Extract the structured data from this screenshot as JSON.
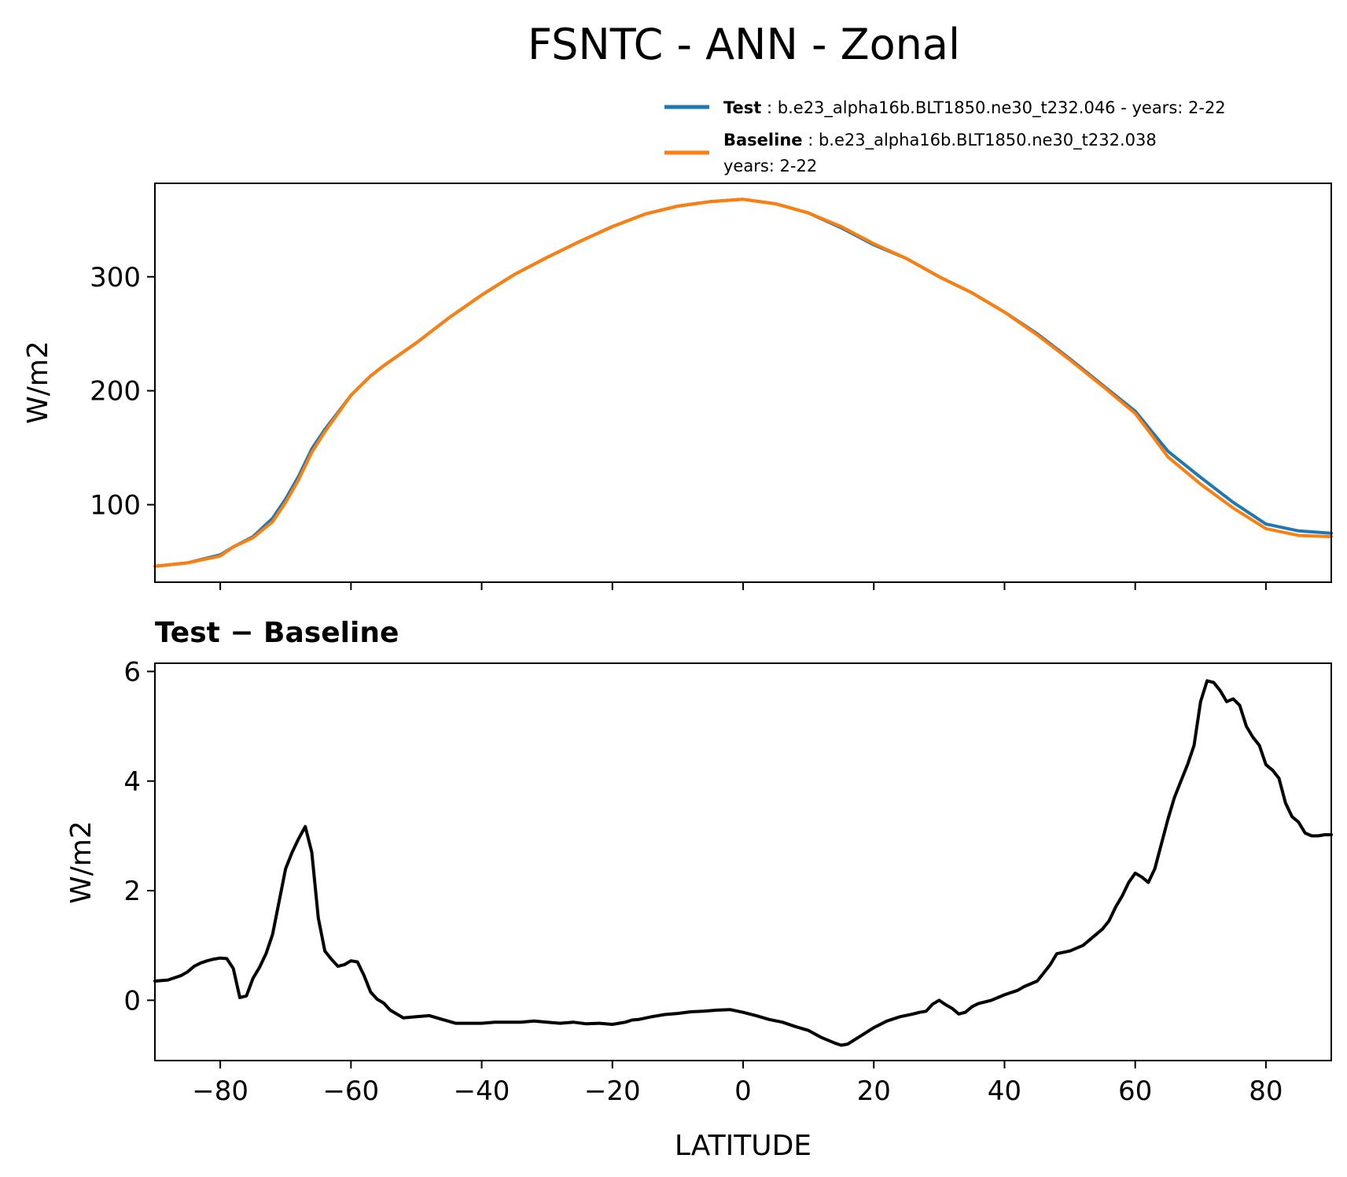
{
  "figure_title": "FSNTC - ANN - Zonal",
  "legend": {
    "test": {
      "label": "Test",
      "desc": "b.e23_alpha16b.BLT1850.ne30_t232.046 - years: 2-22",
      "color": "#1f77b4"
    },
    "baseline": {
      "label": "Baseline",
      "desc": "b.e23_alpha16b.BLT1850.ne30_t232.038",
      "desc2": "years: 2-22",
      "color": "#ff7f0e"
    }
  },
  "diff_title": "Test − Baseline",
  "chart_data": [
    {
      "type": "line",
      "title": "FSNTC - ANN - Zonal",
      "xlabel": "",
      "ylabel": "W/m2",
      "xlim": [
        -90,
        90
      ],
      "ylim": [
        32,
        382
      ],
      "xticks": [
        -80,
        -60,
        -40,
        -20,
        0,
        20,
        40,
        60,
        80
      ],
      "yticks": [
        100,
        200,
        300
      ],
      "ytick_labels": [
        "100",
        "200",
        "300"
      ],
      "x": [
        -90,
        -85,
        -80,
        -78,
        -75,
        -72,
        -70,
        -68,
        -66,
        -64,
        -62,
        -60,
        -57,
        -55,
        -50,
        -45,
        -40,
        -35,
        -30,
        -25,
        -20,
        -15,
        -10,
        -5,
        0,
        5,
        10,
        15,
        20,
        25,
        30,
        35,
        40,
        45,
        50,
        55,
        60,
        62,
        65,
        70,
        75,
        80,
        85,
        90
      ],
      "series": [
        {
          "name": "Test",
          "color": "#1f77b4",
          "values": [
            46,
            49,
            56,
            63,
            72,
            88,
            105,
            125,
            149,
            166,
            181,
            196,
            213,
            222,
            242,
            264,
            284,
            302,
            317,
            331,
            344,
            355,
            362,
            366,
            368,
            364,
            356,
            343,
            328,
            316,
            300,
            286,
            269,
            250,
            228,
            205,
            182,
            168,
            147,
            124,
            102,
            83,
            77,
            75
          ]
        },
        {
          "name": "Baseline",
          "color": "#ff7f0e",
          "values": [
            46,
            49,
            55,
            63,
            71,
            85,
            102,
            122,
            146,
            164,
            180,
            196,
            213,
            222,
            242,
            264,
            284,
            302,
            317,
            331,
            344,
            355,
            362,
            366,
            368,
            364,
            356,
            344,
            329,
            316,
            300,
            286,
            269,
            249,
            227,
            204,
            180,
            165,
            142,
            118,
            97,
            79,
            73,
            72
          ]
        }
      ]
    },
    {
      "type": "line",
      "title": "Test − Baseline",
      "xlabel": "LATITUDE",
      "ylabel": "W/m2",
      "xlim": [
        -90,
        90
      ],
      "ylim": [
        -1.1,
        6.15
      ],
      "xticks": [
        -80,
        -60,
        -40,
        -20,
        0,
        20,
        40,
        60,
        80
      ],
      "xtick_labels": [
        "−80",
        "−60",
        "−40",
        "−20",
        "0",
        "20",
        "40",
        "60",
        "80"
      ],
      "yticks": [
        0,
        2,
        4,
        6
      ],
      "ytick_labels": [
        "0",
        "2",
        "4",
        "6"
      ],
      "x": [
        -90,
        -88,
        -86,
        -85,
        -84,
        -83,
        -82,
        -81,
        -80,
        -79,
        -78,
        -77,
        -76,
        -75,
        -74,
        -73,
        -72,
        -71,
        -70,
        -69,
        -68,
        -67,
        -66,
        -65,
        -64,
        -63,
        -62,
        -61,
        -60,
        -59,
        -58,
        -57,
        -56,
        -55,
        -54,
        -52,
        -50,
        -48,
        -46,
        -44,
        -42,
        -40,
        -38,
        -36,
        -34,
        -32,
        -30,
        -28,
        -26,
        -24,
        -22,
        -20,
        -19,
        -18,
        -17,
        -16,
        -14,
        -12,
        -10,
        -8,
        -6,
        -4,
        -2,
        0,
        2,
        4,
        6,
        8,
        10,
        12,
        14,
        15,
        16,
        18,
        20,
        22,
        24,
        26,
        27,
        28,
        29,
        30,
        31,
        32,
        33,
        34,
        35,
        36,
        38,
        39,
        40,
        42,
        43,
        44,
        45,
        46,
        47,
        48,
        50,
        52,
        53,
        54,
        55,
        56,
        57,
        58,
        59,
        60,
        61,
        62,
        63,
        64,
        65,
        66,
        67,
        68,
        69,
        70,
        71,
        72,
        73,
        74,
        75,
        76,
        77,
        78,
        79,
        80,
        81,
        82,
        83,
        84,
        85,
        86,
        87,
        88,
        89,
        90
      ],
      "series": [
        {
          "name": "Test − Baseline",
          "color": "#000000",
          "values": [
            0.35,
            0.37,
            0.45,
            0.52,
            0.62,
            0.68,
            0.72,
            0.75,
            0.77,
            0.76,
            0.58,
            0.05,
            0.08,
            0.4,
            0.6,
            0.85,
            1.2,
            1.8,
            2.4,
            2.7,
            2.95,
            3.17,
            2.7,
            1.5,
            0.9,
            0.75,
            0.62,
            0.65,
            0.72,
            0.7,
            0.45,
            0.15,
            0.02,
            -0.05,
            -0.18,
            -0.32,
            -0.3,
            -0.28,
            -0.35,
            -0.42,
            -0.42,
            -0.42,
            -0.4,
            -0.4,
            -0.4,
            -0.38,
            -0.4,
            -0.42,
            -0.4,
            -0.43,
            -0.42,
            -0.44,
            -0.42,
            -0.4,
            -0.36,
            -0.35,
            -0.3,
            -0.26,
            -0.24,
            -0.21,
            -0.2,
            -0.18,
            -0.17,
            -0.22,
            -0.28,
            -0.35,
            -0.4,
            -0.48,
            -0.55,
            -0.68,
            -0.78,
            -0.82,
            -0.8,
            -0.65,
            -0.5,
            -0.38,
            -0.3,
            -0.25,
            -0.22,
            -0.2,
            -0.07,
            0.0,
            -0.08,
            -0.15,
            -0.25,
            -0.22,
            -0.12,
            -0.06,
            0.0,
            0.05,
            0.1,
            0.18,
            0.25,
            0.3,
            0.35,
            0.5,
            0.65,
            0.85,
            0.9,
            1.0,
            1.1,
            1.2,
            1.3,
            1.45,
            1.7,
            1.9,
            2.15,
            2.32,
            2.25,
            2.15,
            2.4,
            2.85,
            3.3,
            3.7,
            4.0,
            4.3,
            4.65,
            5.45,
            5.83,
            5.8,
            5.65,
            5.45,
            5.5,
            5.38,
            5.0,
            4.8,
            4.65,
            4.3,
            4.2,
            4.05,
            3.6,
            3.35,
            3.25,
            3.05,
            3.0,
            3.0,
            3.02,
            3.02
          ]
        }
      ]
    }
  ]
}
